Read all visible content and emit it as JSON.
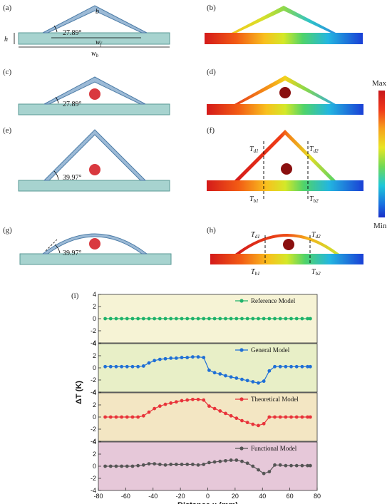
{
  "panels": {
    "a": {
      "label": "(a)",
      "angle": "27.89°",
      "sym_b": "b",
      "sym_h": "h",
      "sym_wf": "w",
      "sub_wf": "f",
      "sym_wb": "w",
      "sub_wb": "b"
    },
    "b": {
      "label": "(b)"
    },
    "c": {
      "label": "(c)",
      "angle": "27.89°"
    },
    "d": {
      "label": "(d)"
    },
    "e": {
      "label": "(e)",
      "angle": "39.97°"
    },
    "f": {
      "label": "(f)",
      "td1": "T",
      "td1_sub": "d1",
      "td2": "T",
      "td2_sub": "d2",
      "tb1": "T",
      "tb1_sub": "b1",
      "tb2": "T",
      "tb2_sub": "b2"
    },
    "g": {
      "label": "(g)",
      "angle": "39.97°"
    },
    "h": {
      "label": "(h)",
      "td1": "T",
      "td1_sub": "d1",
      "td2": "T",
      "td2_sub": "d2",
      "tb1": "T",
      "tb1_sub": "b1",
      "tb2": "T",
      "tb2_sub": "b2"
    }
  },
  "colorbar": {
    "max_label": "Max",
    "min_label": "Min"
  },
  "colors": {
    "structure_fill": "#a7d3cf",
    "structure_stroke": "#5a9a96",
    "arm_fill": "#9cbad6",
    "arm_stroke": "#4f7ea8",
    "object": "#d9393f",
    "object_dark": "#8a0f0f",
    "bg_reference": "#f6f3d5",
    "bg_general": "#e8efc7",
    "bg_theoretical": "#f3e6c3",
    "bg_functional": "#e6c8d9"
  },
  "chart_data": {
    "type": "line",
    "label": "(i)",
    "xlabel": "Distance x (mm)",
    "ylabel": "ΔT (K)",
    "xlim": [
      -80,
      80
    ],
    "x_ticks": [
      "-80",
      "-60",
      "-40",
      "-20",
      "0",
      "20",
      "40",
      "60",
      "80"
    ],
    "ylim": [
      -4,
      4
    ],
    "y_ticks": [
      "-4",
      "-2",
      "0",
      "2",
      "4"
    ],
    "x": [
      -75,
      -71,
      -67,
      -63,
      -59,
      -55,
      -51,
      -47,
      -43,
      -39,
      -35,
      -31,
      -27,
      -23,
      -19,
      -15,
      -11,
      -7,
      -3,
      1,
      5,
      9,
      13,
      17,
      21,
      25,
      29,
      33,
      37,
      41,
      45,
      49,
      53,
      57,
      61,
      65,
      69,
      73,
      75
    ],
    "series": [
      {
        "name": "Reference Model",
        "color": "#1fb36b",
        "values": [
          0,
          0,
          0,
          0,
          0,
          0,
          0,
          0,
          0,
          0,
          0,
          0,
          0,
          0,
          0,
          0,
          0,
          0,
          0,
          0,
          0,
          0,
          0,
          0,
          0,
          0,
          0,
          0,
          0,
          0,
          0,
          0,
          0,
          0,
          0,
          0,
          0,
          0,
          0
        ]
      },
      {
        "name": "General Model",
        "color": "#1f6fd6",
        "values": [
          0.2,
          0.2,
          0.2,
          0.2,
          0.2,
          0.2,
          0.2,
          0.3,
          0.8,
          1.2,
          1.4,
          1.5,
          1.6,
          1.6,
          1.7,
          1.7,
          1.8,
          1.8,
          1.7,
          -0.4,
          -0.8,
          -1.0,
          -1.3,
          -1.5,
          -1.7,
          -1.9,
          -2.1,
          -2.3,
          -2.5,
          -2.2,
          -0.5,
          0.2,
          0.2,
          0.2,
          0.2,
          0.2,
          0.2,
          0.2,
          0.2
        ]
      },
      {
        "name": "Theoretical Model",
        "color": "#e8333a",
        "values": [
          0,
          0,
          0,
          0,
          0,
          0,
          0,
          0.2,
          0.8,
          1.4,
          1.8,
          2.1,
          2.3,
          2.5,
          2.7,
          2.8,
          2.9,
          2.9,
          2.8,
          1.8,
          1.4,
          1.0,
          0.6,
          0.2,
          -0.2,
          -0.6,
          -0.9,
          -1.2,
          -1.4,
          -1.1,
          0,
          0,
          0,
          0,
          0,
          0,
          0,
          0,
          0
        ]
      },
      {
        "name": "Functional Model",
        "color": "#555555",
        "values": [
          0,
          0,
          0,
          0,
          0,
          0,
          0.1,
          0.2,
          0.4,
          0.4,
          0.3,
          0.2,
          0.3,
          0.3,
          0.3,
          0.3,
          0.3,
          0.2,
          0.3,
          0.6,
          0.7,
          0.8,
          0.9,
          1.0,
          1.0,
          0.8,
          0.5,
          0.0,
          -0.6,
          -1.2,
          -0.9,
          0.2,
          0.2,
          0.1,
          0.1,
          0.1,
          0.1,
          0.1,
          0.1
        ]
      }
    ]
  }
}
